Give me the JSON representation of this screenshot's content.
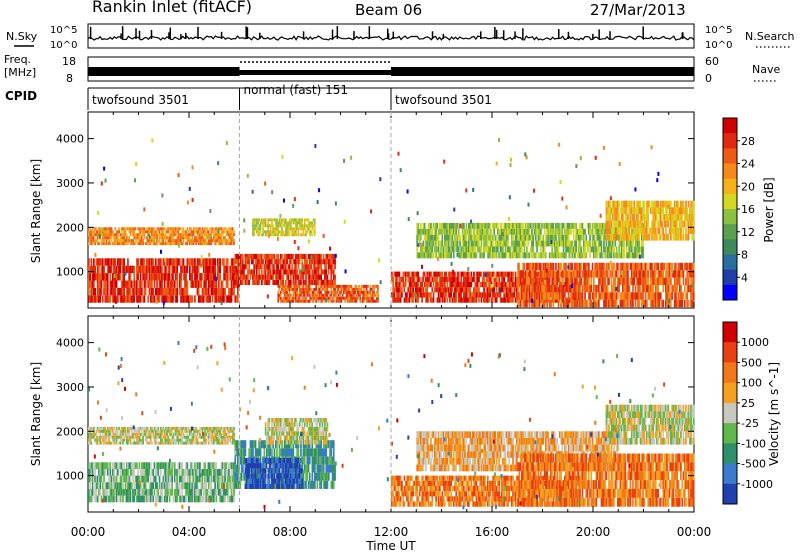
{
  "header": {
    "title": "Rankin Inlet (fitACF)",
    "beam": "Beam 06",
    "date": "27/Mar/2013"
  },
  "noise_panel": {
    "left_label": "N.Sky",
    "right_label": "N.Search",
    "tick_top": "10^5",
    "tick_bottom": "10^0"
  },
  "freq_panel": {
    "left_label_line1": "Freq.",
    "left_label_line2": "[MHz]",
    "tick_top": "18",
    "tick_bottom": "8",
    "right_label": "Nave",
    "right_tick_top": "60",
    "right_tick_bottom": "0"
  },
  "cpid_panel": {
    "label": "CPID",
    "modes": [
      {
        "name": "twofsound 3501",
        "start_hour": 0,
        "end_hour": 6
      },
      {
        "name": "normal (fast) 151",
        "start_hour": 6,
        "end_hour": 12
      },
      {
        "name": "twofsound 3501",
        "start_hour": 12,
        "end_hour": 24
      }
    ]
  },
  "x_axis": {
    "label": "Time UT",
    "ticks": [
      "00:00",
      "04:00",
      "08:00",
      "12:00",
      "16:00",
      "20:00",
      "00:00"
    ]
  },
  "chart_data": [
    {
      "type": "heatmap",
      "title": "",
      "xlabel": "Time UT",
      "ylabel": "Slant Range [km]",
      "xlim_hours": [
        0,
        24
      ],
      "ylim": [
        180,
        4600
      ],
      "yticks": [
        1000,
        2000,
        3000,
        4000
      ],
      "colorbar": {
        "label": "Power [dB]",
        "ticks": [
          "28",
          "24",
          "20",
          "16",
          "12",
          "8",
          "4"
        ],
        "colors": [
          "#0000ff",
          "#1f3fa8",
          "#2a6e9e",
          "#3c8a5a",
          "#5aa050",
          "#8cc040",
          "#d4d820",
          "#f5b01a",
          "#f58a1a",
          "#ee5a14",
          "#e02a10",
          "#d00000"
        ]
      },
      "regions": [
        {
          "t0": 0.0,
          "t1": 6.0,
          "r0": 300,
          "r1": 1300,
          "c": 10
        },
        {
          "t0": 0.0,
          "t1": 5.8,
          "r0": 1600,
          "r1": 2000,
          "c": 8
        },
        {
          "t0": 5.8,
          "t1": 9.8,
          "r0": 700,
          "r1": 1400,
          "c": 10
        },
        {
          "t0": 6.5,
          "t1": 9.0,
          "r0": 1800,
          "r1": 2200,
          "c": 6
        },
        {
          "t0": 7.5,
          "t1": 11.5,
          "r0": 300,
          "r1": 700,
          "c": 9
        },
        {
          "t0": 12.0,
          "t1": 19.5,
          "r0": 300,
          "r1": 1000,
          "c": 10
        },
        {
          "t0": 13.0,
          "t1": 22.0,
          "r0": 1300,
          "r1": 2100,
          "c": 5
        },
        {
          "t0": 17.0,
          "t1": 24.0,
          "r0": 200,
          "r1": 1200,
          "c": 9
        },
        {
          "t0": 20.5,
          "t1": 24.0,
          "r0": 1700,
          "r1": 2600,
          "c": 7
        }
      ]
    },
    {
      "type": "heatmap",
      "title": "",
      "xlabel": "Time UT",
      "ylabel": "Slant Range [km]",
      "xlim_hours": [
        0,
        24
      ],
      "ylim": [
        180,
        4600
      ],
      "yticks": [
        1000,
        2000,
        3000,
        4000
      ],
      "colorbar": {
        "label": "Velocity [m s^-1]",
        "ticks": [
          "1000",
          "500",
          "100",
          "25",
          "-25",
          "-100",
          "-500",
          "-1000"
        ],
        "colors": [
          "#2040b0",
          "#3a7bd0",
          "#2f8f6a",
          "#5fb84a",
          "#c8c8c0",
          "#f5a020",
          "#f07818",
          "#e84010",
          "#d00000"
        ]
      },
      "regions": [
        {
          "t0": 0.0,
          "t1": 5.8,
          "r0": 400,
          "r1": 1300,
          "c": 3
        },
        {
          "t0": 0.0,
          "t1": 5.8,
          "r0": 1700,
          "r1": 2100,
          "c": 4
        },
        {
          "t0": 5.8,
          "t1": 9.8,
          "r0": 700,
          "r1": 1800,
          "c": 2
        },
        {
          "t0": 6.2,
          "t1": 8.5,
          "r0": 700,
          "r1": 1400,
          "c": 0
        },
        {
          "t0": 7.0,
          "t1": 9.5,
          "r0": 1700,
          "r1": 2300,
          "c": 4
        },
        {
          "t0": 12.0,
          "t1": 19.5,
          "r0": 300,
          "r1": 1000,
          "c": 6
        },
        {
          "t0": 13.0,
          "t1": 21.0,
          "r0": 1100,
          "r1": 2000,
          "c": 5
        },
        {
          "t0": 17.0,
          "t1": 24.0,
          "r0": 300,
          "r1": 1500,
          "c": 6
        },
        {
          "t0": 20.5,
          "t1": 24.0,
          "r0": 1700,
          "r1": 2600,
          "c": 4
        }
      ]
    }
  ]
}
